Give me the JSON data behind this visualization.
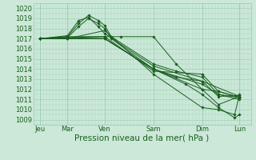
{
  "title": "Pression niveau de la mer( hPa )",
  "ylabel_values": [
    1009,
    1010,
    1011,
    1012,
    1013,
    1014,
    1015,
    1016,
    1017,
    1018,
    1019,
    1020
  ],
  "ylim": [
    1008.5,
    1020.5
  ],
  "xlim": [
    -0.2,
    6.5
  ],
  "xtick_positions": [
    0.0,
    0.85,
    2.0,
    3.5,
    5.0,
    6.15
  ],
  "xtick_labels": [
    "Jeu",
    "Mar",
    "Ven",
    "Sam",
    "Dim",
    "Lun"
  ],
  "bg_color": "#cce8d8",
  "grid_color": "#99ccb0",
  "line_color": "#1a5e20",
  "marker_color": "#1a5e20",
  "lines": [
    {
      "x": [
        0.0,
        0.85,
        1.2,
        1.5,
        1.8,
        2.0,
        2.2,
        3.5,
        4.2,
        5.0,
        5.5,
        6.15
      ],
      "y": [
        1017.0,
        1017.2,
        1018.5,
        1019.3,
        1018.8,
        1018.3,
        1017.2,
        1014.5,
        1013.8,
        1013.2,
        1011.5,
        1011.2
      ]
    },
    {
      "x": [
        0.0,
        0.85,
        1.2,
        1.5,
        1.8,
        2.0,
        2.2,
        3.5,
        4.2,
        5.0,
        5.5,
        6.15
      ],
      "y": [
        1017.0,
        1017.1,
        1018.2,
        1019.0,
        1018.5,
        1018.0,
        1017.0,
        1014.0,
        1013.2,
        1012.8,
        1011.3,
        1011.4
      ]
    },
    {
      "x": [
        0.0,
        0.85,
        1.2,
        1.5,
        1.8,
        2.0,
        3.5,
        5.0,
        6.15
      ],
      "y": [
        1017.0,
        1017.3,
        1018.8,
        1019.1,
        1018.2,
        1017.5,
        1014.3,
        1012.8,
        1011.3
      ]
    },
    {
      "x": [
        0.0,
        0.85,
        2.0,
        2.5,
        3.5,
        4.2,
        5.0,
        5.5,
        6.15
      ],
      "y": [
        1017.0,
        1017.2,
        1017.2,
        1017.2,
        1017.2,
        1014.5,
        1012.0,
        1011.8,
        1011.2
      ]
    },
    {
      "x": [
        0.0,
        0.85,
        2.0,
        3.5,
        5.0,
        5.5,
        6.15
      ],
      "y": [
        1017.0,
        1017.1,
        1017.0,
        1014.0,
        1012.5,
        1011.5,
        1011.0
      ]
    },
    {
      "x": [
        0.0,
        0.85,
        2.0,
        3.5,
        5.0,
        5.5,
        6.15
      ],
      "y": [
        1017.0,
        1017.1,
        1017.2,
        1013.8,
        1013.5,
        1011.8,
        1011.2
      ]
    },
    {
      "x": [
        0.0,
        0.85,
        2.0,
        3.5,
        4.5,
        5.0,
        5.5,
        6.0,
        6.15
      ],
      "y": [
        1017.0,
        1017.0,
        1017.0,
        1014.0,
        1012.5,
        1011.5,
        1010.2,
        1009.2,
        1009.5
      ]
    },
    {
      "x": [
        0.0,
        0.85,
        2.0,
        3.5,
        5.0,
        5.5,
        6.0,
        6.15
      ],
      "y": [
        1017.0,
        1017.0,
        1017.8,
        1013.5,
        1010.2,
        1010.0,
        1009.5,
        1011.5
      ]
    },
    {
      "x": [
        0.0,
        0.85,
        2.0,
        3.5,
        5.0,
        5.5,
        6.15
      ],
      "y": [
        1017.0,
        1017.0,
        1017.0,
        1014.0,
        1012.0,
        1010.5,
        1011.3
      ]
    }
  ],
  "fontsize_ticks": 6,
  "fontsize_xlabel": 7.5
}
